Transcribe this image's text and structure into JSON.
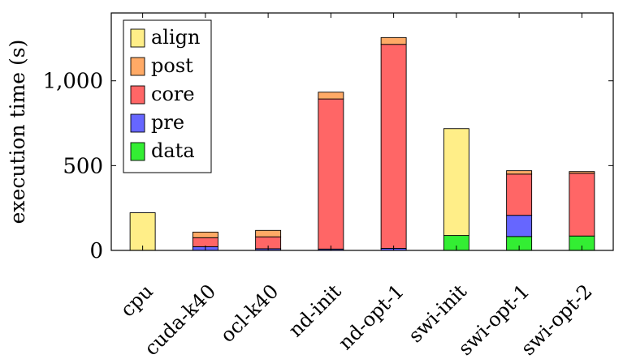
{
  "chart_data": {
    "type": "bar",
    "stacked": true,
    "ylabel": "execution time (s)",
    "xlabel": "",
    "ylim": [
      0,
      1400
    ],
    "yticks": [
      0,
      500,
      1000
    ],
    "ytick_labels": [
      "0",
      "500",
      "1,000"
    ],
    "grid": false,
    "legend_position": "top-left",
    "categories": [
      "cpu",
      "cuda-k40",
      "ocl-k40",
      "nd-init",
      "nd-opt-1",
      "swi-init",
      "swi-opt-1",
      "swi-opt-2"
    ],
    "series": [
      {
        "name": "data",
        "color": "#33ee33",
        "values": [
          0,
          0,
          0,
          0,
          0,
          88,
          82,
          85
        ]
      },
      {
        "name": "pre",
        "color": "#6666ff",
        "values": [
          0,
          22,
          10,
          8,
          12,
          0,
          125,
          0
        ]
      },
      {
        "name": "core",
        "color": "#ff6666",
        "values": [
          0,
          53,
          70,
          885,
          1203,
          0,
          243,
          370
        ]
      },
      {
        "name": "post",
        "color": "#ffaa66",
        "values": [
          0,
          33,
          38,
          40,
          40,
          0,
          20,
          10
        ]
      },
      {
        "name": "align",
        "color": "#ffee88",
        "values": [
          222,
          0,
          0,
          0,
          0,
          630,
          0,
          0
        ]
      }
    ],
    "legend_order": [
      "align",
      "post",
      "core",
      "pre",
      "data"
    ]
  }
}
